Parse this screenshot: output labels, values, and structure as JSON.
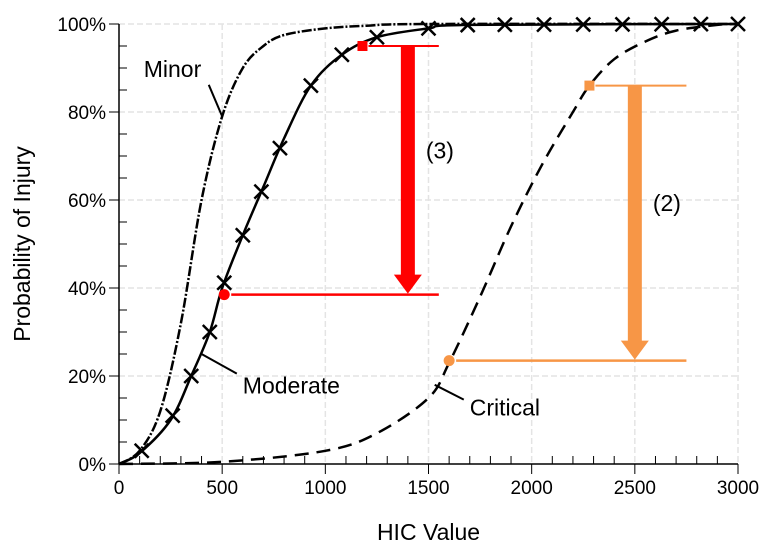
{
  "chart_data": {
    "type": "line",
    "title": "",
    "xlabel": "HIC Value",
    "ylabel": "Probability of Injury",
    "xlim": [
      0,
      3000
    ],
    "ylim": [
      0,
      100
    ],
    "x_ticks": [
      0,
      500,
      1000,
      1500,
      2000,
      2500,
      3000
    ],
    "x_tick_labels": [
      "0",
      "500",
      "1000",
      "1500",
      "2000",
      "2500",
      "3000"
    ],
    "y_ticks": [
      0,
      20,
      40,
      60,
      80,
      100
    ],
    "y_tick_labels": [
      "0%",
      "20%",
      "40%",
      "60%",
      "80%",
      "100%"
    ],
    "x_minor_step": 100,
    "y_minor_step": 5,
    "grid": true,
    "series": [
      {
        "name": "Minor",
        "style": "dash-dot",
        "color": "#000000",
        "points": [
          [
            0,
            0
          ],
          [
            100,
            3
          ],
          [
            200,
            12
          ],
          [
            300,
            32
          ],
          [
            400,
            60
          ],
          [
            500,
            79
          ],
          [
            600,
            90
          ],
          [
            700,
            95
          ],
          [
            800,
            97.5
          ],
          [
            1000,
            99
          ],
          [
            1200,
            99.6
          ],
          [
            1500,
            100
          ],
          [
            3000,
            100
          ]
        ]
      },
      {
        "name": "Moderate",
        "style": "solid",
        "color": "#000000",
        "marker": "x",
        "points": [
          [
            0,
            0
          ],
          [
            100,
            2.5
          ],
          [
            250,
            10
          ],
          [
            350,
            20
          ],
          [
            440,
            30
          ],
          [
            500,
            40
          ],
          [
            600,
            52
          ],
          [
            700,
            63
          ],
          [
            800,
            74
          ],
          [
            930,
            86
          ],
          [
            1080,
            93
          ],
          [
            1250,
            97
          ],
          [
            1500,
            99
          ],
          [
            1700,
            99.8
          ],
          [
            3000,
            100
          ]
        ],
        "marker_x": [
          110,
          260,
          350,
          440,
          510,
          600,
          690,
          780,
          930,
          1080,
          1250,
          1500,
          1690,
          1870,
          2060,
          2250,
          2440,
          2630,
          2820,
          3000
        ]
      },
      {
        "name": "Critical",
        "style": "dashed",
        "color": "#000000",
        "points": [
          [
            0,
            0
          ],
          [
            500,
            0.5
          ],
          [
            1000,
            3
          ],
          [
            1250,
            7
          ],
          [
            1500,
            15
          ],
          [
            1600,
            23
          ],
          [
            1750,
            38
          ],
          [
            1900,
            54
          ],
          [
            2050,
            68
          ],
          [
            2200,
            80
          ],
          [
            2280,
            86
          ],
          [
            2400,
            92
          ],
          [
            2550,
            96
          ],
          [
            2700,
            98.5
          ],
          [
            2900,
            99.8
          ],
          [
            3000,
            100
          ]
        ]
      }
    ],
    "annotations": [
      {
        "label": "Minor",
        "text_pos": [
          120,
          88
        ],
        "pointer_to": [
          500,
          79
        ]
      },
      {
        "label": "Moderate",
        "text_pos": [
          600,
          16
        ],
        "pointer_to": [
          400,
          25
        ]
      },
      {
        "label": "Critical",
        "text_pos": [
          1700,
          11
        ],
        "pointer_to": [
          1530,
          18
        ]
      }
    ],
    "arrows": [
      {
        "label": "(3)",
        "color": "#ff0000",
        "from_point": [
          1180,
          95
        ],
        "to_point": [
          510,
          38.5
        ],
        "arrow_x": 1400,
        "line_end_x": 1550
      },
      {
        "label": "(2)",
        "color": "#f79646",
        "from_point": [
          2280,
          86
        ],
        "to_point": [
          1600,
          23.5
        ],
        "arrow_x": 2500,
        "line_end_x": 2750
      }
    ]
  }
}
